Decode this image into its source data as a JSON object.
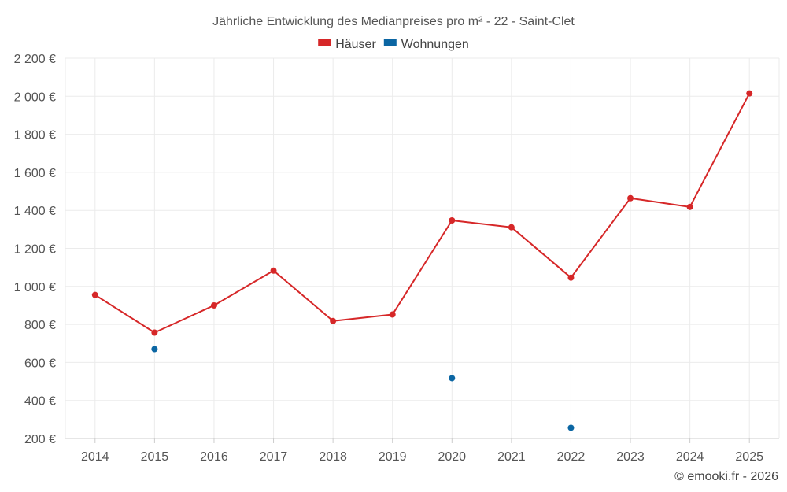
{
  "chart_data": {
    "type": "line",
    "title": "Jährliche Entwicklung des Medianpreises pro m² - 22 - Saint-Clet",
    "categories": [
      "2014",
      "2015",
      "2016",
      "2017",
      "2018",
      "2019",
      "2020",
      "2021",
      "2022",
      "2023",
      "2024",
      "2025"
    ],
    "ylim": [
      200,
      2200
    ],
    "yticks": [
      200,
      400,
      600,
      800,
      1000,
      1200,
      1400,
      1600,
      1800,
      2000,
      2200
    ],
    "ytick_labels": [
      "200 €",
      "400 €",
      "600 €",
      "800 €",
      "1 000 €",
      "1 200 €",
      "1 400 €",
      "1 600 €",
      "1 800 €",
      "2 000 €",
      "2 200 €"
    ],
    "grid": true,
    "legend_position": "top-center",
    "series": [
      {
        "name": "Häuser",
        "color": "#d62728",
        "values": [
          955,
          757,
          900,
          1083,
          818,
          852,
          1347,
          1311,
          1046,
          1464,
          1418,
          2015
        ]
      },
      {
        "name": "Wohnungen",
        "color": "#0b66a3",
        "values": [
          null,
          670,
          null,
          null,
          null,
          null,
          517,
          null,
          256,
          null,
          null,
          null
        ]
      }
    ]
  },
  "credit": "© emooki.fr - 2026"
}
